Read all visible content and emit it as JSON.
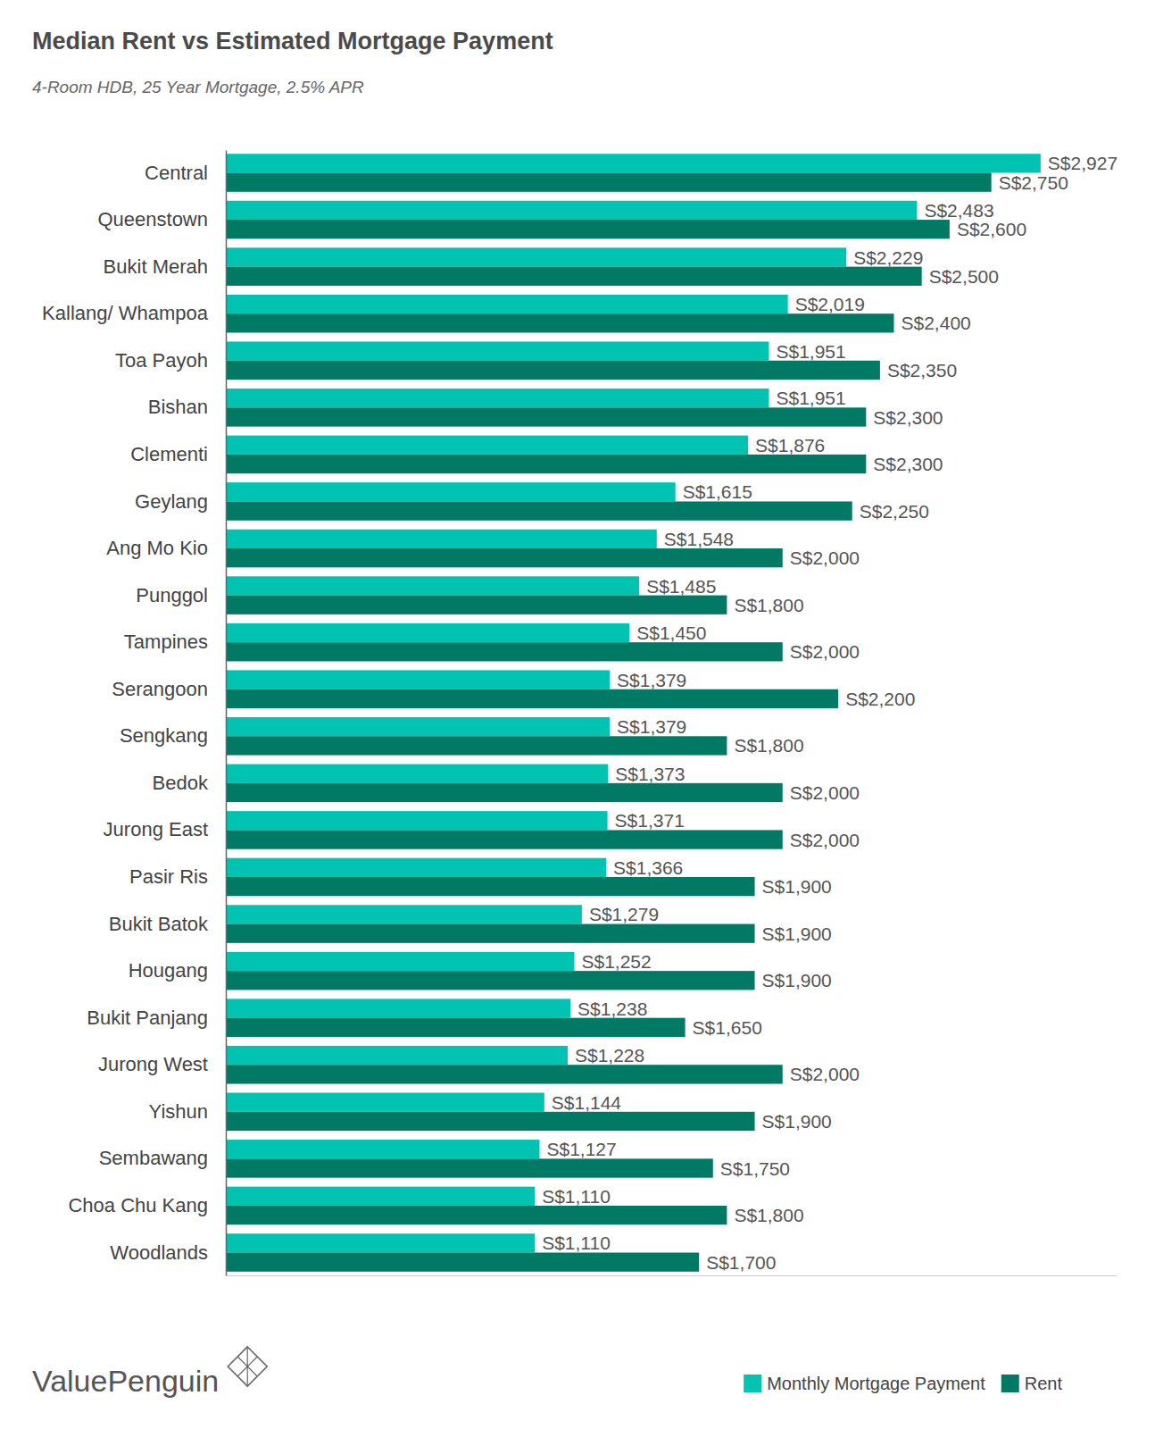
{
  "chart_data": {
    "type": "bar",
    "orientation": "horizontal",
    "title": "Median Rent vs Estimated Mortgage Payment",
    "subtitle": "4-Room HDB, 25 Year Mortgage, 2.5% APR",
    "annotations": [
      "ValuePenguin"
    ],
    "categories": [
      "Central",
      "Queenstown",
      "Bukit Merah",
      "Kallang/ Whampoa",
      "Toa Payoh",
      "Bishan",
      "Clementi",
      "Geylang",
      "Ang Mo Kio",
      "Punggol",
      "Tampines",
      "Serangoon",
      "Sengkang",
      "Bedok",
      "Jurong East",
      "Pasir Ris",
      "Bukit Batok",
      "Hougang",
      "Bukit Panjang",
      "Jurong West",
      "Yishun",
      "Sembawang",
      "Choa Chu Kang",
      "Woodlands"
    ],
    "series": [
      {
        "name": "Monthly Mortgage Payment",
        "color": "#00c4b1",
        "values": [
          2927,
          2483,
          2229,
          2019,
          1951,
          1951,
          1876,
          1615,
          1548,
          1485,
          1450,
          1379,
          1379,
          1373,
          1371,
          1366,
          1279,
          1252,
          1238,
          1228,
          1144,
          1127,
          1110,
          1110
        ],
        "value_labels": [
          "S$2,927",
          "S$2,483",
          "S$2,229",
          "S$2,019",
          "S$1,951",
          "S$1,951",
          "S$1,876",
          "S$1,615",
          "S$1,548",
          "S$1,485",
          "S$1,450",
          "S$1,379",
          "S$1,379",
          "S$1,373",
          "S$1,371",
          "S$1,366",
          "S$1,279",
          "S$1,252",
          "S$1,238",
          "S$1,228",
          "S$1,144",
          "S$1,127",
          "S$1,110",
          "S$1,110"
        ]
      },
      {
        "name": "Rent",
        "color": "#007a64",
        "values": [
          2750,
          2600,
          2500,
          2400,
          2350,
          2300,
          2300,
          2250,
          2000,
          1800,
          2000,
          2200,
          1800,
          2000,
          2000,
          1900,
          1900,
          1900,
          1650,
          2000,
          1900,
          1750,
          1800,
          1700
        ],
        "value_labels": [
          "S$2,750",
          "S$2,600",
          "S$2,500",
          "S$2,400",
          "S$2,350",
          "S$2,300",
          "S$2,300",
          "S$2,250",
          "S$2,000",
          "S$1,800",
          "S$2,000",
          "S$2,200",
          "S$1,800",
          "S$2,000",
          "S$2,000",
          "S$1,900",
          "S$1,900",
          "S$1,900",
          "S$1,650",
          "S$2,000",
          "S$1,900",
          "S$1,750",
          "S$1,800",
          "S$1,700"
        ]
      }
    ],
    "xlim": [
      0,
      3200
    ],
    "xticks": [],
    "grid": false,
    "data_labels": true,
    "tick_labels": "y",
    "legend": "lower right"
  }
}
